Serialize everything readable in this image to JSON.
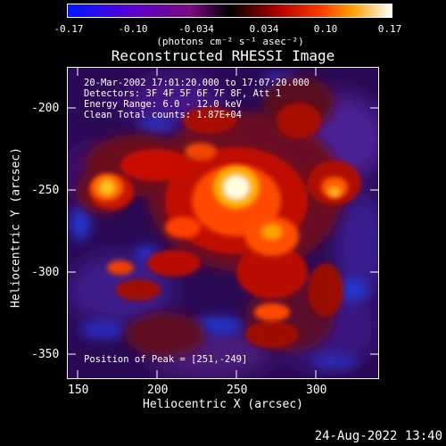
{
  "colorbar": {
    "ticks": [
      "-0.17",
      "-0.10",
      "-0.034",
      "0.034",
      "0.10",
      "0.17"
    ],
    "units": "(photons cm⁻² s⁻¹ asec⁻²)"
  },
  "title": "Reconstructed RHESSI Image",
  "info": {
    "line1": "20-Mar-2002 17:01:20.000 to 17:07:20.000",
    "line2": "Detectors: 3F 4F 5F 6F 7F 8F, Att 1",
    "line3": "Energy Range: 6.0 - 12.0 keV",
    "line4": "Clean     Total counts: 1.87E+04",
    "peak": "Position of Peak = [251,-249]"
  },
  "axes": {
    "x_title": "Heliocentric X (arcsec)",
    "y_title": "Heliocentric Y (arcsec)",
    "x_ticks": [
      "150",
      "200",
      "250",
      "300"
    ],
    "y_ticks": [
      "-200",
      "-250",
      "-300",
      "-350"
    ]
  },
  "timestamp": "24-Aug-2022 13:40",
  "colors": {
    "background": "#000000",
    "foreground": "#ffffff"
  }
}
